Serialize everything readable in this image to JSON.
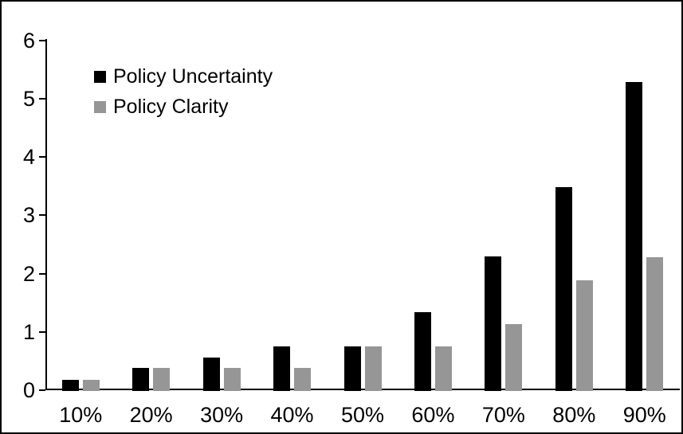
{
  "chart_data": {
    "type": "bar",
    "title": "",
    "xlabel": "",
    "ylabel": "",
    "categories": [
      "10%",
      "20%",
      "30%",
      "40%",
      "50%",
      "60%",
      "70%",
      "80%",
      "90%"
    ],
    "series": [
      {
        "name": "Policy Uncertainty",
        "color": "#000000",
        "values": [
          0.19,
          0.39,
          0.57,
          0.77,
          0.77,
          1.35,
          2.31,
          3.5,
          5.3
        ]
      },
      {
        "name": "Policy Clarity",
        "color": "#969696",
        "values": [
          0.19,
          0.39,
          0.39,
          0.39,
          0.77,
          0.77,
          1.15,
          1.9,
          2.3
        ]
      }
    ],
    "ylim": [
      0,
      6
    ],
    "yticks": [
      0,
      1,
      2,
      3,
      4,
      5,
      6
    ],
    "grid": false,
    "legend_position": "upper-left-inside",
    "colors": {
      "axis": "#000000",
      "frame": "#000000",
      "background": "#ffffff",
      "text": "#000000"
    }
  }
}
